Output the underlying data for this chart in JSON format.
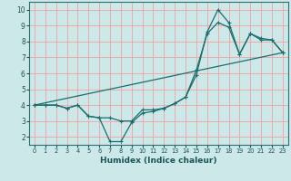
{
  "xlabel": "Humidex (Indice chaleur)",
  "xlim": [
    -0.5,
    23.5
  ],
  "ylim": [
    1.5,
    10.5
  ],
  "xticks": [
    0,
    1,
    2,
    3,
    4,
    5,
    6,
    7,
    8,
    9,
    10,
    11,
    12,
    13,
    14,
    15,
    16,
    17,
    18,
    19,
    20,
    21,
    22,
    23
  ],
  "yticks": [
    2,
    3,
    4,
    5,
    6,
    7,
    8,
    9,
    10
  ],
  "bg_color": "#cce8e8",
  "line_color": "#1a6e6e",
  "grid_color": "#f5a0a0",
  "line1_x": [
    0,
    1,
    2,
    3,
    4,
    5,
    6,
    7,
    8,
    9,
    10,
    11,
    12,
    13,
    14,
    15,
    16,
    17,
    18,
    19,
    20,
    21,
    22,
    23
  ],
  "line1_y": [
    4.0,
    4.0,
    4.0,
    3.8,
    4.0,
    3.3,
    3.2,
    3.2,
    3.0,
    3.0,
    3.7,
    3.7,
    3.8,
    4.1,
    4.5,
    6.2,
    8.5,
    9.2,
    8.9,
    7.2,
    8.5,
    8.1,
    8.1,
    7.3
  ],
  "line2_x": [
    0,
    1,
    2,
    3,
    4,
    5,
    6,
    7,
    8,
    9,
    10,
    11,
    12,
    13,
    14,
    15,
    16,
    17,
    18,
    19,
    20,
    21,
    22,
    23
  ],
  "line2_y": [
    4.0,
    4.0,
    4.0,
    3.8,
    4.0,
    3.3,
    3.2,
    1.7,
    1.7,
    2.9,
    3.5,
    3.6,
    3.8,
    4.1,
    4.5,
    5.9,
    8.6,
    10.0,
    9.2,
    7.2,
    8.5,
    8.2,
    8.1,
    7.3
  ],
  "line3_x": [
    0,
    23
  ],
  "line3_y": [
    4.0,
    7.3
  ],
  "marker_x": [
    0,
    2,
    4,
    6,
    8,
    10,
    12,
    14,
    16,
    18,
    20,
    22,
    23
  ],
  "marker_y": [
    4.0,
    4.0,
    4.0,
    3.2,
    3.0,
    3.7,
    3.8,
    4.5,
    8.5,
    8.9,
    8.5,
    8.1,
    7.3
  ]
}
